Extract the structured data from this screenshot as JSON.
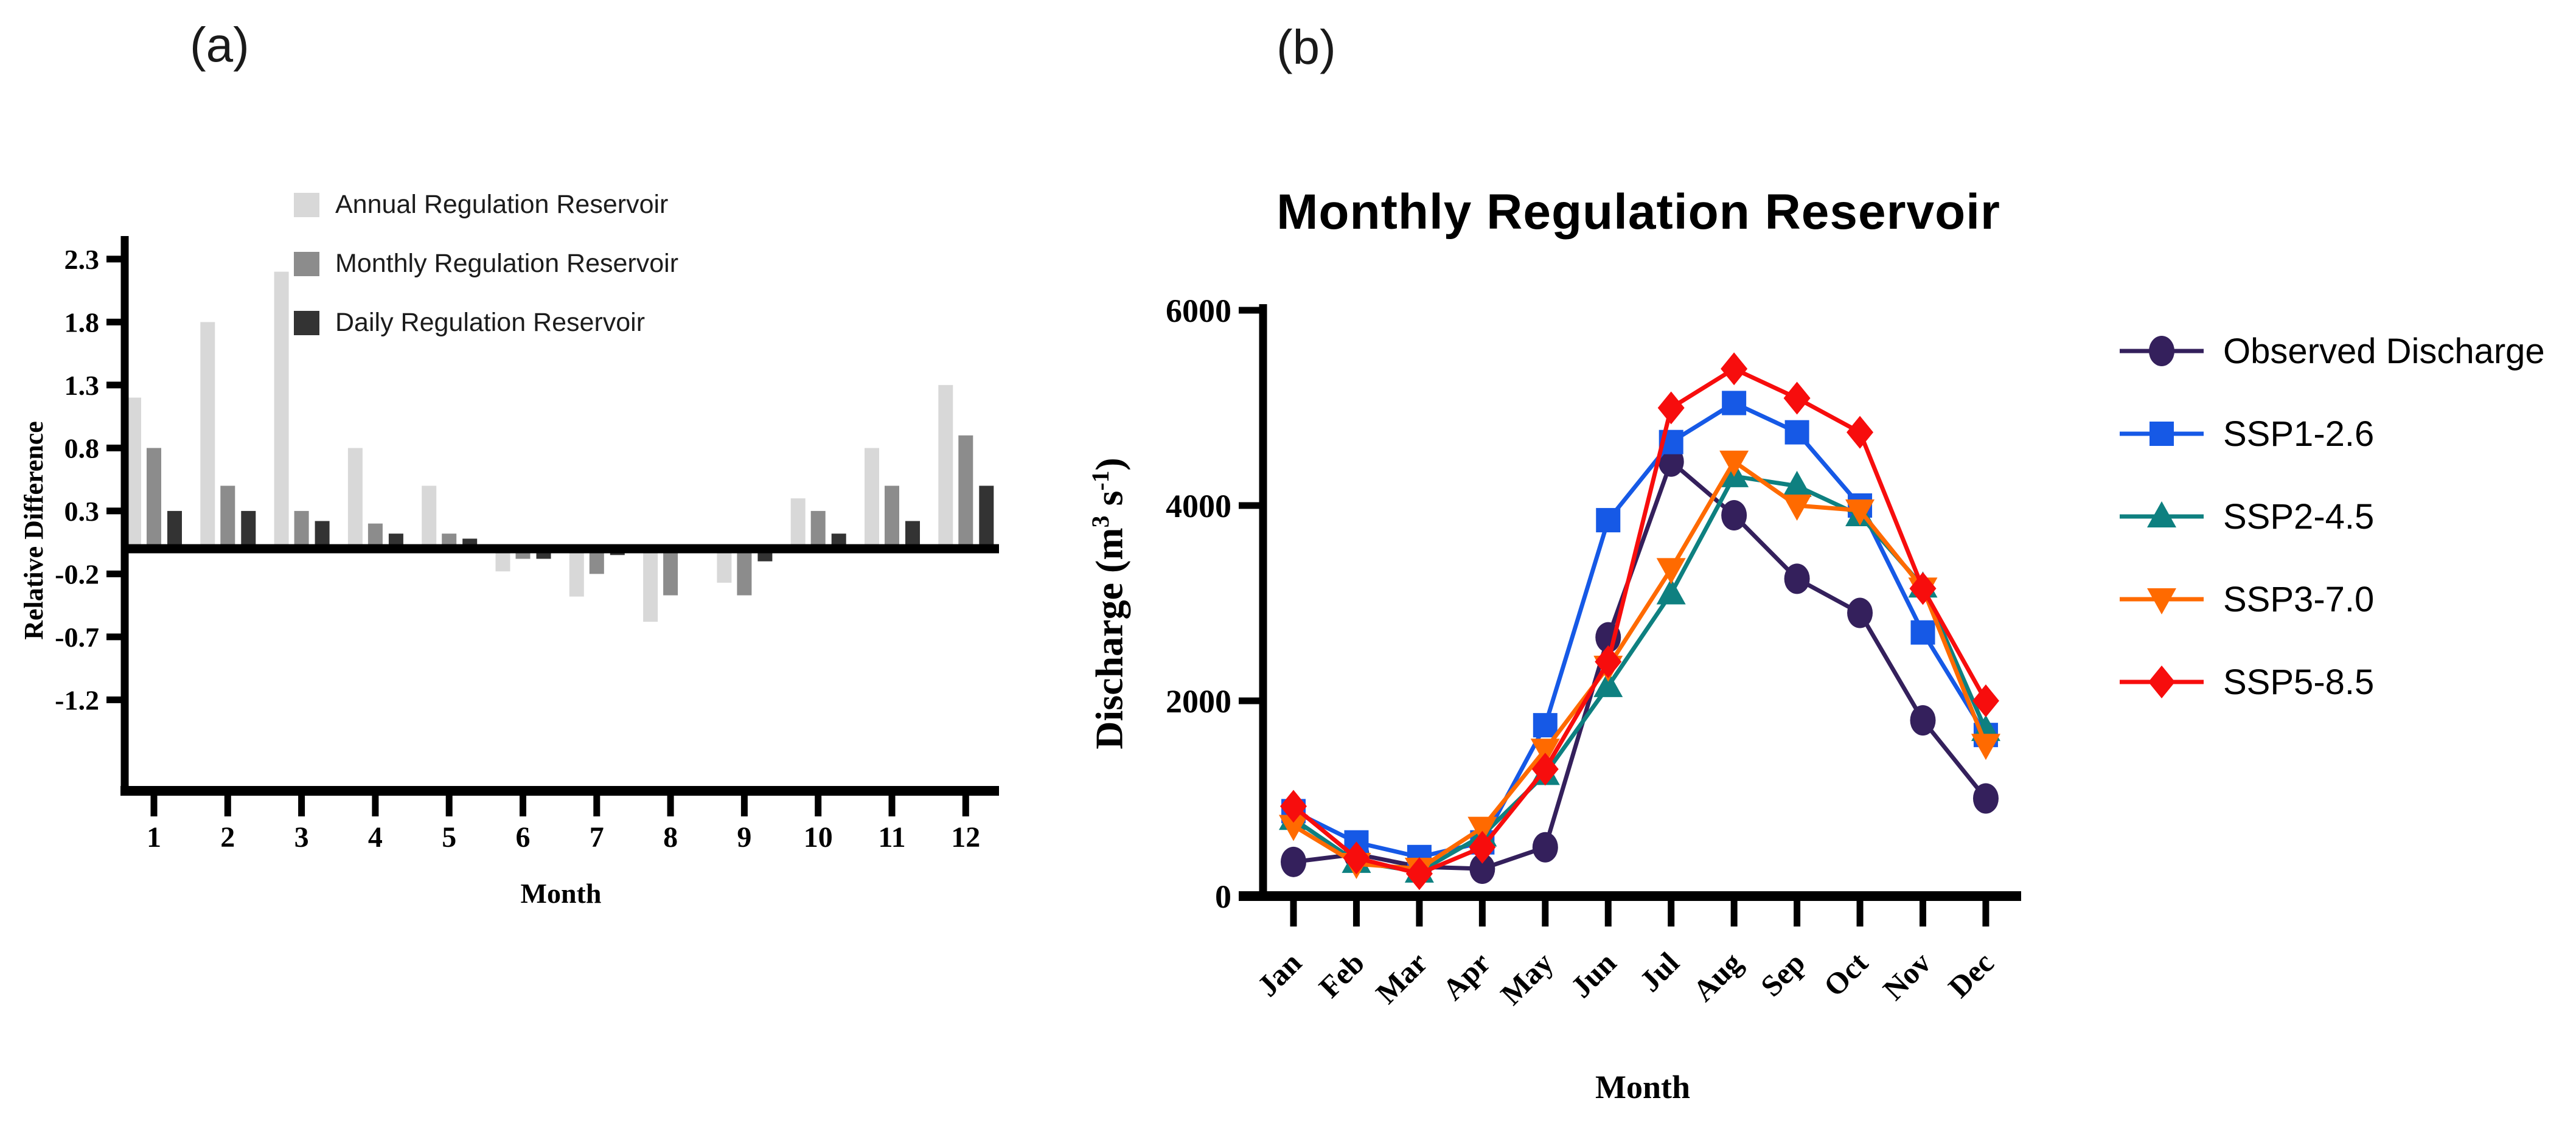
{
  "panel_a": {
    "tag": "(a)",
    "y_axis_label": "Relative Difference",
    "x_axis_label": "Month"
  },
  "panel_b": {
    "tag": "(b)",
    "title": "Monthly Regulation Reservoir",
    "y_axis_label_parts": {
      "pre": "Discharge (m",
      "sup1": "3",
      "mid": " s",
      "sup2": "-1",
      "post": ")"
    },
    "x_axis_label": "Month"
  },
  "chart_data": [
    {
      "type": "bar",
      "title": "",
      "xlabel": "Month",
      "ylabel": "Relative Difference",
      "categories": [
        "1",
        "2",
        "3",
        "4",
        "5",
        "6",
        "7",
        "8",
        "9",
        "10",
        "11",
        "12"
      ],
      "y_tick_labels": [
        "2.3",
        "1.8",
        "1.3",
        "0.8",
        "0.3",
        "-0.2",
        "-0.7",
        "-1.2"
      ],
      "y_tick_values": [
        2.3,
        1.8,
        1.3,
        0.8,
        0.3,
        -0.2,
        -0.7,
        -1.2
      ],
      "ylim": [
        -1.9,
        2.45
      ],
      "grid": false,
      "legend_position": "upper-left-inside",
      "series": [
        {
          "name": "Annual Regulation Reservoir",
          "color": "#d8d8d8",
          "values": [
            1.2,
            1.8,
            2.2,
            0.8,
            0.5,
            -0.18,
            -0.38,
            -0.58,
            -0.27,
            0.4,
            0.8,
            1.3
          ]
        },
        {
          "name": "Monthly Regulation Reservoir",
          "color": "#8c8c8c",
          "values": [
            0.8,
            0.5,
            0.3,
            0.2,
            0.12,
            -0.08,
            -0.2,
            -0.37,
            -0.37,
            0.3,
            0.5,
            0.9
          ]
        },
        {
          "name": "Daily Regulation Reservoir",
          "color": "#333333",
          "values": [
            0.3,
            0.3,
            0.22,
            0.12,
            0.08,
            -0.08,
            -0.05,
            0.03,
            -0.1,
            0.12,
            0.22,
            0.5
          ]
        }
      ]
    },
    {
      "type": "line",
      "title": "Monthly Regulation Reservoir",
      "xlabel": "Month",
      "ylabel": "Discharge (m3 s-1)",
      "x": [
        "Jan",
        "Feb",
        "Mar",
        "Apr",
        "May",
        "Jun",
        "Jul",
        "Aug",
        "Sep",
        "Oct",
        "Nov",
        "Dec"
      ],
      "y_tick_labels": [
        "0",
        "2000",
        "4000",
        "6000"
      ],
      "y_tick_values": [
        0,
        2000,
        4000,
        6000
      ],
      "ylim": [
        0,
        6000
      ],
      "grid": false,
      "legend_position": "right-outside",
      "series": [
        {
          "name": "Observed Discharge",
          "color": "#34205c",
          "marker": "circle",
          "values": [
            350,
            430,
            300,
            280,
            500,
            2650,
            4450,
            3900,
            3250,
            2900,
            1800,
            1000
          ]
        },
        {
          "name": "SSP1-2.6",
          "color": "#1659e6",
          "marker": "square",
          "values": [
            870,
            550,
            400,
            550,
            1750,
            3850,
            4650,
            5050,
            4750,
            4000,
            2700,
            1650
          ]
        },
        {
          "name": "SSP2-4.5",
          "color": "#0e8080",
          "marker": "triangle-up",
          "values": [
            790,
            350,
            250,
            620,
            1250,
            2150,
            3100,
            4300,
            4200,
            3900,
            3170,
            1700
          ]
        },
        {
          "name": "SSP3-7.0",
          "color": "#ff6a00",
          "marker": "triangle-down",
          "values": [
            720,
            330,
            280,
            700,
            1500,
            2350,
            3350,
            4450,
            4000,
            3950,
            3150,
            1550
          ]
        },
        {
          "name": "SSP5-8.5",
          "color": "#f70d0d",
          "marker": "diamond",
          "values": [
            920,
            390,
            230,
            500,
            1300,
            2400,
            5000,
            5400,
            5100,
            4750,
            3150,
            2000
          ]
        }
      ]
    }
  ]
}
